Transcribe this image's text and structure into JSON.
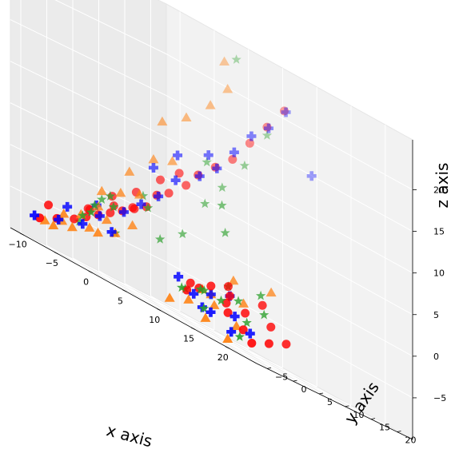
{
  "chart_data": {
    "type": "scatter3d",
    "title": "",
    "xlabel": "x axis",
    "ylabel": "y axis",
    "zlabel": "z axis",
    "xlim": [
      -12,
      24
    ],
    "ylim": [
      -7,
      23
    ],
    "zlim": [
      -10,
      26
    ],
    "xticks": [
      "−10",
      "−5",
      "0",
      "5",
      "10",
      "15",
      "20"
    ],
    "yticks": [
      "−5",
      "0",
      "5",
      "10",
      "15",
      "20"
    ],
    "zticks": [
      "−5",
      "0",
      "5",
      "10",
      "15",
      "20"
    ],
    "grid": true,
    "series": [
      {
        "marker": "star",
        "color": "#2ca02c",
        "points": [
          [
            -6,
            -1,
            -4
          ],
          [
            -5,
            0,
            -2
          ],
          [
            -4,
            -2,
            -3
          ],
          [
            -8,
            1,
            -5
          ],
          [
            -3,
            1,
            -1
          ],
          [
            -2,
            0,
            -4
          ],
          [
            -5,
            3,
            0
          ],
          [
            -7,
            4,
            -1
          ],
          [
            -1,
            5,
            1
          ],
          [
            0,
            6,
            -2
          ],
          [
            -4,
            8,
            2
          ],
          [
            1,
            9,
            0
          ],
          [
            2,
            12,
            5
          ],
          [
            3,
            14,
            8
          ],
          [
            0,
            15,
            10
          ],
          [
            4,
            17,
            12
          ],
          [
            5,
            20,
            17
          ],
          [
            -1,
            22,
            24
          ],
          [
            10,
            -3,
            -6
          ],
          [
            12,
            -2,
            -5
          ],
          [
            14,
            -4,
            -7
          ],
          [
            16,
            0,
            -4
          ],
          [
            18,
            -1,
            -6
          ],
          [
            20,
            -5,
            -8
          ],
          [
            13,
            2,
            -3
          ],
          [
            15,
            -2,
            -5
          ],
          [
            17,
            3,
            -2
          ],
          [
            19,
            1,
            -4
          ],
          [
            11,
            0,
            -5
          ],
          [
            9,
            -1,
            -6
          ],
          [
            6,
            10,
            6
          ],
          [
            8,
            8,
            3
          ]
        ]
      },
      {
        "marker": "triangle",
        "color": "#ff7f0e",
        "points": [
          [
            -9,
            -1,
            -6
          ],
          [
            -8,
            -2,
            -5
          ],
          [
            -7,
            0,
            -4
          ],
          [
            -6,
            -3,
            -6
          ],
          [
            -5,
            -1,
            -5
          ],
          [
            -4,
            1,
            -3
          ],
          [
            -3,
            -2,
            -5
          ],
          [
            -2,
            0,
            -4
          ],
          [
            -1,
            2,
            -2
          ],
          [
            -6,
            2,
            -2
          ],
          [
            -7,
            4,
            0
          ],
          [
            -5,
            5,
            1
          ],
          [
            -3,
            6,
            2
          ],
          [
            -6,
            8,
            4
          ],
          [
            -4,
            10,
            7
          ],
          [
            -2,
            11,
            8
          ],
          [
            -5,
            13,
            12
          ],
          [
            -3,
            15,
            14
          ],
          [
            -1,
            17,
            17
          ],
          [
            0,
            19,
            20
          ],
          [
            -2,
            21,
            23
          ],
          [
            9,
            -4,
            -8
          ],
          [
            11,
            -3,
            -7
          ],
          [
            12,
            0,
            -5
          ],
          [
            14,
            -2,
            -6
          ],
          [
            16,
            1,
            -4
          ],
          [
            18,
            -3,
            -7
          ],
          [
            19,
            -6,
            -9
          ],
          [
            15,
            -5,
            -8
          ],
          [
            13,
            3,
            -2
          ],
          [
            10,
            1,
            -5
          ],
          [
            17,
            5,
            -1
          ],
          [
            -8,
            -4,
            -7
          ],
          [
            -10,
            -3,
            -7
          ]
        ]
      },
      {
        "marker": "plus",
        "color": "#0000ff",
        "points": [
          [
            -10,
            -5,
            -7
          ],
          [
            -8,
            -3,
            -6
          ],
          [
            -6,
            -1,
            -5
          ],
          [
            -5,
            1,
            -3
          ],
          [
            -3,
            3,
            -1
          ],
          [
            -2,
            5,
            1
          ],
          [
            -1,
            7,
            3
          ],
          [
            0,
            9,
            6
          ],
          [
            2,
            11,
            8
          ],
          [
            3,
            13,
            10
          ],
          [
            4,
            15,
            13
          ],
          [
            5,
            17,
            16
          ],
          [
            6,
            19,
            18
          ],
          [
            7,
            21,
            21
          ],
          [
            10,
            22,
            15
          ],
          [
            -4,
            10,
            6
          ],
          [
            -2,
            12,
            9
          ],
          [
            1,
            14,
            11
          ],
          [
            -7,
            3,
            -2
          ],
          [
            -9,
            0,
            -4
          ],
          [
            8,
            -1,
            -5
          ],
          [
            11,
            -2,
            -6
          ],
          [
            13,
            -3,
            -7
          ],
          [
            15,
            -4,
            -7
          ],
          [
            17,
            -2,
            -6
          ],
          [
            18,
            -4,
            -8
          ],
          [
            20,
            -3,
            -7
          ],
          [
            12,
            0,
            -5
          ],
          [
            14,
            1,
            -4
          ],
          [
            -1,
            -2,
            -4
          ]
        ]
      },
      {
        "marker": "circle",
        "color": "#ff0000",
        "points": [
          [
            -10,
            -4,
            -7
          ],
          [
            -9,
            -2,
            -6
          ],
          [
            -8,
            0,
            -5
          ],
          [
            -7,
            1,
            -4
          ],
          [
            -6,
            2,
            -3
          ],
          [
            -5,
            3,
            -2
          ],
          [
            -4,
            4,
            -1
          ],
          [
            -3,
            5,
            0
          ],
          [
            -2,
            6,
            1
          ],
          [
            -8,
            3,
            -3
          ],
          [
            -6,
            5,
            -1
          ],
          [
            -4,
            6,
            0
          ],
          [
            -2,
            8,
            3
          ],
          [
            -1,
            9,
            4
          ],
          [
            0,
            11,
            6
          ],
          [
            1,
            12,
            8
          ],
          [
            2,
            14,
            10
          ],
          [
            3,
            16,
            12
          ],
          [
            4,
            18,
            15
          ],
          [
            5,
            20,
            18
          ],
          [
            6,
            22,
            21
          ],
          [
            -5,
            8,
            2
          ],
          [
            -3,
            10,
            5
          ],
          [
            -1,
            11,
            7
          ],
          [
            -7,
            6,
            0
          ],
          [
            10,
            -2,
            -6
          ],
          [
            11,
            -1,
            -5
          ],
          [
            12,
            0,
            -4
          ],
          [
            13,
            2,
            -3
          ],
          [
            14,
            1,
            -4
          ],
          [
            15,
            -1,
            -5
          ],
          [
            16,
            -2,
            -6
          ],
          [
            17,
            0,
            -5
          ],
          [
            18,
            2,
            -3
          ],
          [
            19,
            -3,
            -7
          ],
          [
            21,
            -4,
            -8
          ],
          [
            22,
            -2,
            -7
          ],
          [
            20,
            1,
            -5
          ],
          [
            23,
            0,
            -6
          ],
          [
            9,
            0,
            -5
          ],
          [
            -9,
            4,
            -3
          ],
          [
            -11,
            -1,
            -5
          ]
        ]
      }
    ]
  }
}
